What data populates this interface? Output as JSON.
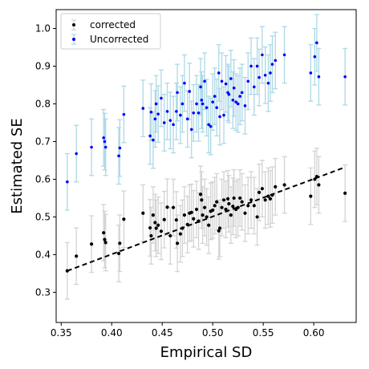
{
  "chart_data": {
    "type": "scatter",
    "title": "",
    "xlabel": "Empirical SD",
    "ylabel": "Estimated SE",
    "xlim": [
      0.345,
      0.642
    ],
    "ylim": [
      0.22,
      1.05
    ],
    "x_ticks": [
      0.35,
      0.4,
      0.45,
      0.5,
      0.55,
      0.6
    ],
    "x_tick_labels": [
      "0.35",
      "0.40",
      "0.45",
      "0.50",
      "0.55",
      "0.60"
    ],
    "y_ticks": [
      0.3,
      0.4,
      0.5,
      0.6,
      0.7,
      0.8,
      0.9,
      1.0
    ],
    "y_tick_labels": [
      "0.3",
      "0.4",
      "0.5",
      "0.6",
      "0.7",
      "0.8",
      "0.9",
      "1.0"
    ],
    "grid": false,
    "legend_position": "top-left",
    "reference_line": {
      "style": "dashed",
      "color": "#000000",
      "points": [
        [
          0.356,
          0.357
        ],
        [
          0.631,
          0.632
        ]
      ]
    },
    "series": [
      {
        "name": "corrected",
        "marker_color": "#000000",
        "errorbar_color": "#d3d3d3",
        "error_halfwidth": 0.075,
        "points": [
          [
            0.356,
            0.357
          ],
          [
            0.365,
            0.396
          ],
          [
            0.38,
            0.428
          ],
          [
            0.392,
            0.458
          ],
          [
            0.393,
            0.44
          ],
          [
            0.394,
            0.432
          ],
          [
            0.407,
            0.403
          ],
          [
            0.408,
            0.43
          ],
          [
            0.412,
            0.494
          ],
          [
            0.431,
            0.51
          ],
          [
            0.438,
            0.471
          ],
          [
            0.439,
            0.45
          ],
          [
            0.441,
            0.505
          ],
          [
            0.443,
            0.485
          ],
          [
            0.444,
            0.47
          ],
          [
            0.446,
            0.478
          ],
          [
            0.449,
            0.462
          ],
          [
            0.452,
            0.493
          ],
          [
            0.455,
            0.526
          ],
          [
            0.458,
            0.45
          ],
          [
            0.461,
            0.525
          ],
          [
            0.464,
            0.492
          ],
          [
            0.465,
            0.43
          ],
          [
            0.468,
            0.455
          ],
          [
            0.47,
            0.47
          ],
          [
            0.472,
            0.505
          ],
          [
            0.475,
            0.48
          ],
          [
            0.477,
            0.51
          ],
          [
            0.479,
            0.512
          ],
          [
            0.481,
            0.495
          ],
          [
            0.484,
            0.52
          ],
          [
            0.486,
            0.489
          ],
          [
            0.488,
            0.56
          ],
          [
            0.489,
            0.545
          ],
          [
            0.49,
            0.505
          ],
          [
            0.492,
            0.525
          ],
          [
            0.494,
            0.5
          ],
          [
            0.496,
            0.478
          ],
          [
            0.498,
            0.515
          ],
          [
            0.5,
            0.518
          ],
          [
            0.502,
            0.53
          ],
          [
            0.504,
            0.54
          ],
          [
            0.506,
            0.463
          ],
          [
            0.507,
            0.47
          ],
          [
            0.509,
            0.525
          ],
          [
            0.511,
            0.545
          ],
          [
            0.513,
            0.52
          ],
          [
            0.515,
            0.548
          ],
          [
            0.516,
            0.535
          ],
          [
            0.518,
            0.505
          ],
          [
            0.52,
            0.528
          ],
          [
            0.521,
            0.55
          ],
          [
            0.523,
            0.52
          ],
          [
            0.525,
            0.525
          ],
          [
            0.527,
            0.55
          ],
          [
            0.529,
            0.54
          ],
          [
            0.532,
            0.51
          ],
          [
            0.535,
            0.53
          ],
          [
            0.538,
            0.545
          ],
          [
            0.541,
            0.53
          ],
          [
            0.544,
            0.5
          ],
          [
            0.546,
            0.565
          ],
          [
            0.549,
            0.575
          ],
          [
            0.552,
            0.545
          ],
          [
            0.555,
            0.555
          ],
          [
            0.557,
            0.548
          ],
          [
            0.559,
            0.558
          ],
          [
            0.562,
            0.58
          ],
          [
            0.571,
            0.585
          ],
          [
            0.597,
            0.555
          ],
          [
            0.601,
            0.6
          ],
          [
            0.603,
            0.607
          ],
          [
            0.605,
            0.585
          ],
          [
            0.631,
            0.563
          ]
        ]
      },
      {
        "name": "Uncorrected",
        "marker_color": "#0000ff",
        "errorbar_color": "#add8e6",
        "error_halfwidth": 0.075,
        "points": [
          [
            0.356,
            0.593
          ],
          [
            0.365,
            0.668
          ],
          [
            0.38,
            0.685
          ],
          [
            0.392,
            0.71
          ],
          [
            0.393,
            0.7
          ],
          [
            0.394,
            0.685
          ],
          [
            0.407,
            0.662
          ],
          [
            0.408,
            0.683
          ],
          [
            0.412,
            0.772
          ],
          [
            0.431,
            0.788
          ],
          [
            0.438,
            0.715
          ],
          [
            0.439,
            0.778
          ],
          [
            0.441,
            0.704
          ],
          [
            0.443,
            0.76
          ],
          [
            0.444,
            0.8
          ],
          [
            0.446,
            0.773
          ],
          [
            0.449,
            0.815
          ],
          [
            0.452,
            0.75
          ],
          [
            0.455,
            0.78
          ],
          [
            0.458,
            0.756
          ],
          [
            0.461,
            0.745
          ],
          [
            0.464,
            0.78
          ],
          [
            0.465,
            0.83
          ],
          [
            0.468,
            0.77
          ],
          [
            0.47,
            0.8
          ],
          [
            0.472,
            0.855
          ],
          [
            0.475,
            0.76
          ],
          [
            0.477,
            0.833
          ],
          [
            0.479,
            0.732
          ],
          [
            0.481,
            0.776
          ],
          [
            0.484,
            0.8
          ],
          [
            0.486,
            0.776
          ],
          [
            0.488,
            0.845
          ],
          [
            0.489,
            0.81
          ],
          [
            0.49,
            0.8
          ],
          [
            0.492,
            0.86
          ],
          [
            0.494,
            0.79
          ],
          [
            0.496,
            0.745
          ],
          [
            0.498,
            0.74
          ],
          [
            0.5,
            0.805
          ],
          [
            0.502,
            0.82
          ],
          [
            0.504,
            0.79
          ],
          [
            0.506,
            0.882
          ],
          [
            0.507,
            0.766
          ],
          [
            0.509,
            0.86
          ],
          [
            0.511,
            0.77
          ],
          [
            0.513,
            0.853
          ],
          [
            0.515,
            0.83
          ],
          [
            0.516,
            0.825
          ],
          [
            0.518,
            0.867
          ],
          [
            0.52,
            0.81
          ],
          [
            0.521,
            0.842
          ],
          [
            0.523,
            0.805
          ],
          [
            0.525,
            0.8
          ],
          [
            0.527,
            0.82
          ],
          [
            0.529,
            0.83
          ],
          [
            0.532,
            0.795
          ],
          [
            0.535,
            0.86
          ],
          [
            0.538,
            0.9
          ],
          [
            0.541,
            0.845
          ],
          [
            0.544,
            0.9
          ],
          [
            0.546,
            0.87
          ],
          [
            0.549,
            0.93
          ],
          [
            0.552,
            0.876
          ],
          [
            0.555,
            0.855
          ],
          [
            0.557,
            0.882
          ],
          [
            0.559,
            0.905
          ],
          [
            0.562,
            0.915
          ],
          [
            0.571,
            0.93
          ],
          [
            0.597,
            0.882
          ],
          [
            0.601,
            0.925
          ],
          [
            0.603,
            0.962
          ],
          [
            0.605,
            0.872
          ],
          [
            0.631,
            0.872
          ]
        ]
      }
    ]
  }
}
